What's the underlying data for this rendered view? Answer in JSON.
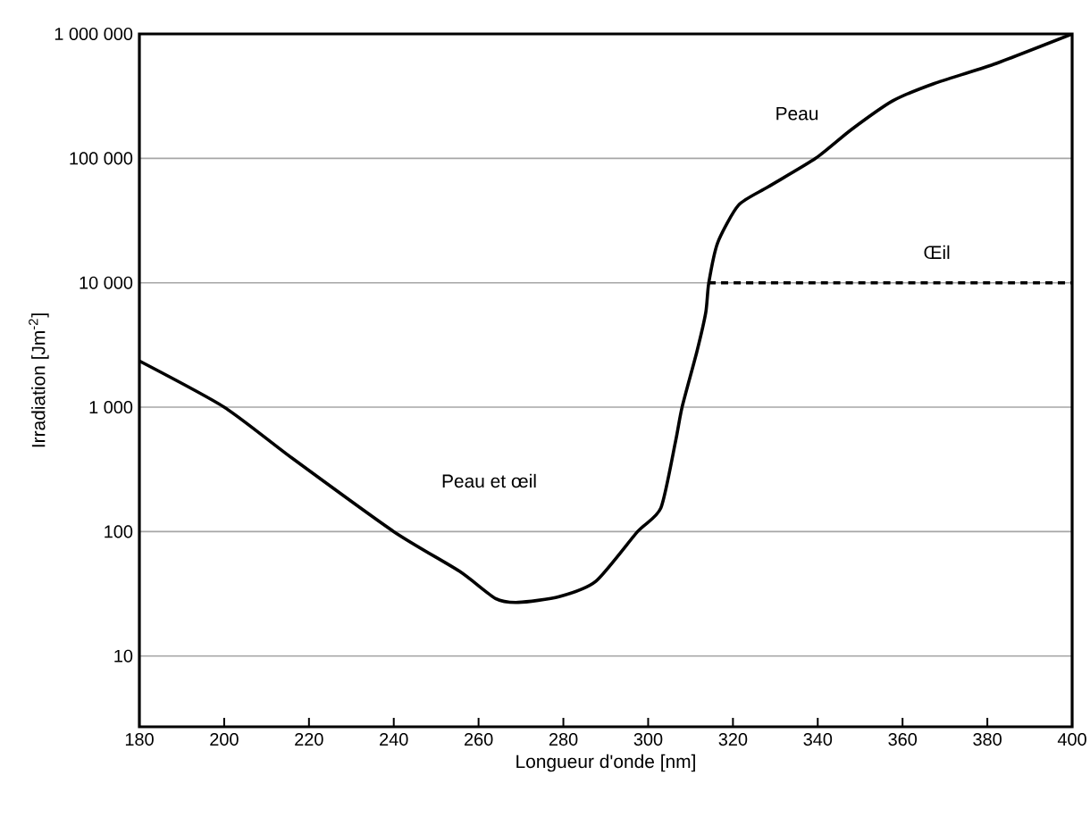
{
  "chart_data": {
    "type": "line",
    "xlabel": "Longueur d'onde [nm]",
    "ylabel": "Irradiation [Jm$^{-2}$]",
    "log": "y",
    "grid": "y",
    "marker": "none",
    "xlim": [
      180,
      400
    ],
    "xticks": [
      180,
      200,
      220,
      240,
      260,
      280,
      300,
      320,
      340,
      360,
      380,
      400
    ],
    "ylim": [
      2.7,
      1000000
    ],
    "yticks": [
      10,
      100,
      {
        "value": 1000,
        "label": "1 000"
      },
      {
        "value": 10000,
        "label": "10 000"
      },
      {
        "value": 100000,
        "label": "100 000"
      },
      {
        "value": 1000000,
        "label": "1 000 000"
      }
    ],
    "series": [
      {
        "color": "#000000",
        "line_style": "solid",
        "x": [
          180,
          200,
          216,
          240,
          255.5,
          264,
          269.4,
          279,
          287.7,
          297.5,
          303,
          306.5,
          308,
          311.5,
          313.6,
          314.3,
          316.4,
          321.3,
          328.3,
          339.5,
          347.9,
          357.7,
          367.5,
          381.5,
          400
        ],
        "values": [
          2350,
          1000,
          390,
          100,
          48,
          29,
          27,
          30,
          40,
          100,
          155,
          540,
          1000,
          2800,
          5800,
          10000,
          21000,
          42000,
          59000,
          100000,
          170000,
          290000,
          400000,
          570000,
          1000000
        ]
      },
      {
        "color": "#000000",
        "line_style": "dashed",
        "x": [
          314.3,
          400
        ],
        "values": [
          10000,
          10000
        ]
      }
    ],
    "annotations": [
      "Peau",
      "Œil",
      "Peau et œil"
    ]
  }
}
